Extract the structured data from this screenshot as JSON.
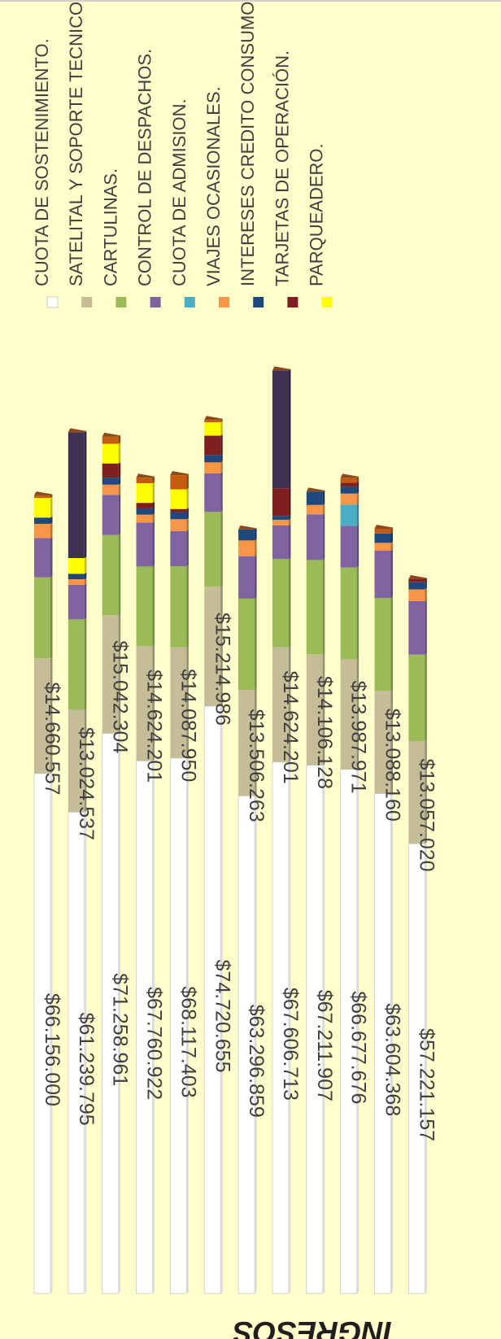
{
  "chart_data": {
    "type": "bar",
    "stacked": true,
    "orientation": "horizontal",
    "rotated": true,
    "title": "INGRESOS",
    "xlabel": "",
    "ylabel": "",
    "grid": false,
    "legend_position": "right",
    "colors": {
      "background": "#ffffcc",
      "title": "#1f1f1f",
      "label": "#404040"
    },
    "categories": [
      "",
      "",
      "",
      "",
      "",
      "",
      "",
      "",
      "",
      "",
      "",
      ""
    ],
    "series": [
      {
        "name": "CUOTA DE SOSTENIMIENTO.",
        "color": "#ffffff",
        "values": [
          66156000,
          61239795,
          71258961,
          67760922,
          68117403,
          74720655,
          63296859,
          67606713,
          67211907,
          66677676,
          63604368,
          57221157
        ]
      },
      {
        "name": "SATELITAL Y SOPORTE TECNICO.",
        "color": "#c4bd97",
        "values": [
          14660557,
          13024537,
          15042304,
          14624201,
          14087950,
          15214986,
          13506263,
          14624201,
          14106128,
          13987971,
          13088160,
          13057020
        ]
      },
      {
        "name": "CARTULINAS.",
        "color": "#9bbb59",
        "values": [
          10300000,
          11500000,
          10200000,
          10100000,
          10300000,
          9500000,
          11600000,
          11200000,
          12000000,
          11700000,
          11800000,
          11000000
        ]
      },
      {
        "name": "CONTROL DE DESPACHOS.",
        "color": "#8064a2",
        "values": [
          5000000,
          4400000,
          5100000,
          5600000,
          4500000,
          4900000,
          5400000,
          4300000,
          5800000,
          5300000,
          6000000,
          6800000
        ]
      },
      {
        "name": "CUOTA DE ADMISION.",
        "color": "#4bacc6",
        "values": [
          0,
          0,
          0,
          0,
          0,
          0,
          0,
          0,
          0,
          2700000,
          0,
          0
        ]
      },
      {
        "name": "VIAJES OCASIONALES.",
        "color": "#f79646",
        "values": [
          1800000,
          700000,
          1300000,
          1000000,
          1500000,
          1400000,
          2000000,
          700000,
          1200000,
          1400000,
          1000000,
          1500000
        ]
      },
      {
        "name": "INTERESES CREDITO CONSUMO.",
        "color": "#1f497d",
        "values": [
          800000,
          700000,
          900000,
          800000,
          900000,
          900000,
          1400000,
          500000,
          1700000,
          900000,
          1200000,
          900000
        ]
      },
      {
        "name": "TARJETAS DE OPERACIÓN.",
        "color": "#7f1f1f",
        "values": [
          0,
          0,
          1800000,
          700000,
          400000,
          2500000,
          0,
          3500000,
          0,
          500000,
          0,
          400000
        ]
      },
      {
        "name": "PARQUEADERO.",
        "color": "#ffff00",
        "values": [
          2500000,
          2000000,
          2500000,
          2500000,
          2500000,
          1700000,
          0,
          0,
          0,
          0,
          0,
          0
        ]
      },
      {
        "name": "",
        "color": "#3f3151",
        "values": [
          0,
          16000000,
          0,
          0,
          0,
          0,
          0,
          15000000,
          0,
          0,
          0,
          0
        ]
      },
      {
        "name": "",
        "color": "#c55a11",
        "values": [
          300000,
          0,
          900000,
          700000,
          1800000,
          300000,
          0,
          0,
          0,
          600000,
          600000,
          0
        ]
      }
    ],
    "data_labels": {
      "cuota_sostenimiento": [
        "$66.156.000",
        "$61.239.795",
        "$71.258.961",
        "$67.760.922",
        "$68.117.403",
        "$74.720.655",
        "$63.296.859",
        "$67.606.713",
        "$67.211.907",
        "$66.677.676",
        "$63.604.368",
        "$57.221.157"
      ],
      "satelital": [
        "$14.660.557",
        "$13.024.537",
        "$15.042.304",
        "$14.624.201",
        "$14.087.950",
        "$15.214.986",
        "$13.506.263",
        "$14.624.201",
        "$14.106.128",
        "$13.987.971",
        "$13.088.160",
        "$13.057.020"
      ]
    }
  }
}
